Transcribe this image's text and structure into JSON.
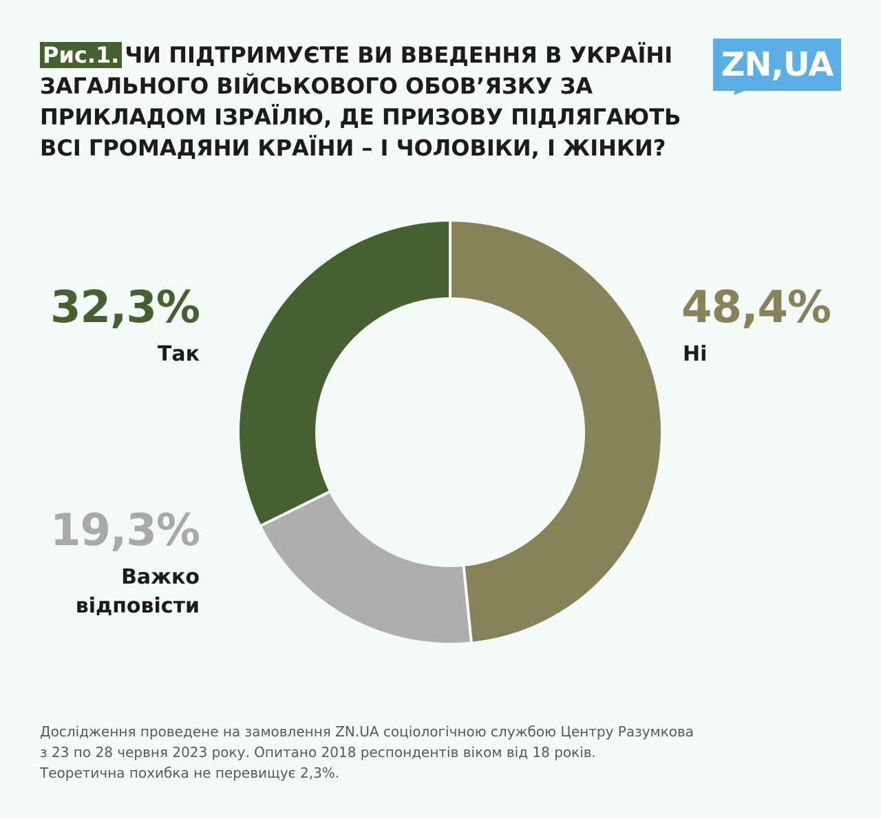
{
  "header": {
    "badge": "Рис.1.",
    "title": "ЧИ ПІДТРИМУЄТЕ ВИ ВВЕДЕННЯ В УКРАЇНІ ЗАГАЛЬНОГО ВІЙСЬКОВОГО ОБОВ’ЯЗКУ ЗА ПРИКЛАДОМ ІЗРАЇЛЮ, ДЕ ПРИЗОВУ ПІДЛЯГАЮТЬ ВСІ ГРОМАДЯНИ КРАЇНИ – І ЧОЛОВІКИ, І ЖІНКИ?"
  },
  "logo": {
    "text": "ZN,UA",
    "color": "#5aaee6"
  },
  "chart_data": {
    "type": "pie",
    "style": "donut",
    "slices": [
      {
        "label": "Ні",
        "value": 48.4,
        "display": "48,4%",
        "color": "#878358",
        "pct_color": "#878358"
      },
      {
        "label": "Важко відповісти",
        "value": 19.3,
        "display": "19,3%",
        "color": "#aeaeae",
        "pct_color": "#a9a9a9"
      },
      {
        "label": "Так",
        "value": 32.3,
        "display": "32,3%",
        "color": "#46602f",
        "pct_color": "#46602f"
      }
    ]
  },
  "footer": {
    "lines": [
      "Дослідження проведене на замовлення ZN.UA соціологічною службою Центру Разумкова",
      "з 23 по 28 червня 2023 року. Опитано 2018 респондентів віком від 18 років.",
      "Теоретична похибка не перевищує 2,3%."
    ]
  }
}
